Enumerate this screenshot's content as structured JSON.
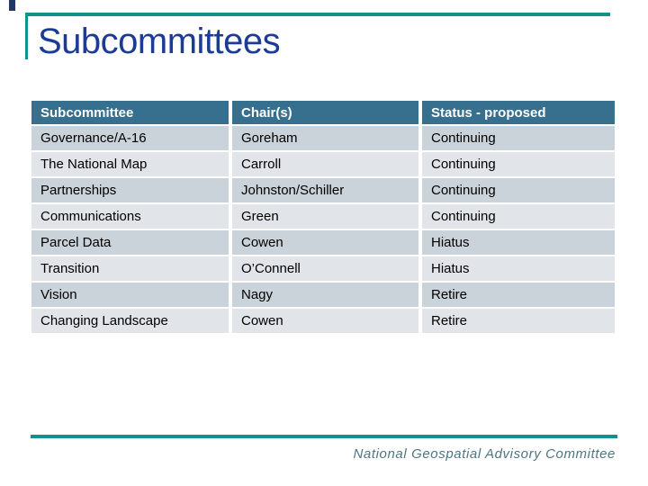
{
  "slide": {
    "title": "Subcommittees",
    "footer": "National Geospatial Advisory Committee"
  },
  "table": {
    "headers": [
      "Subcommittee",
      "Chair(s)",
      "Status - proposed"
    ],
    "rows": [
      [
        "Governance/A-16",
        "Goreham",
        "Continuing"
      ],
      [
        "The National Map",
        "Carroll",
        "Continuing"
      ],
      [
        "Partnerships",
        "Johnston/Schiller",
        "Continuing"
      ],
      [
        "Communications",
        "Green",
        "Continuing"
      ],
      [
        "Parcel Data",
        "Cowen",
        "Hiatus"
      ],
      [
        "Transition",
        "O’Connell",
        "Hiatus"
      ],
      [
        "Vision",
        "Nagy",
        "Retire"
      ],
      [
        "Changing Landscape",
        "Cowen",
        "Retire"
      ]
    ]
  },
  "colors": {
    "accent_teal": "#10928F",
    "header_bg": "#36708E",
    "row_odd": "#CBD3DA",
    "row_even": "#E1E5EA",
    "title_blue": "#1B3B94",
    "corner_navy": "#1F3864",
    "footer_text": "#4E7680"
  }
}
